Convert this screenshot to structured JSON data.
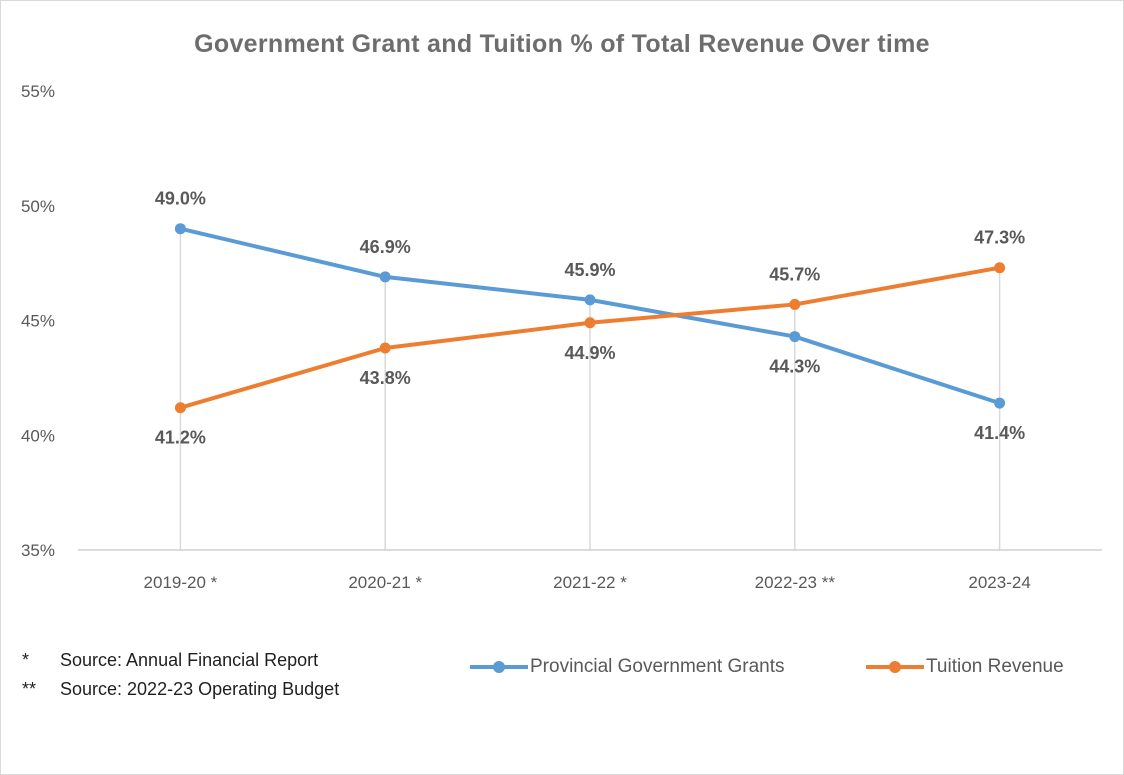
{
  "chart_data": {
    "type": "line",
    "title": "Government  Grant  and  Tuition  %  of  Total  Revenue  Over  time",
    "categories": [
      "2019-20 *",
      "2020-21 *",
      "2021-22 *",
      "2022-23 **",
      "2023-24"
    ],
    "y_ticks": [
      "35%",
      "40%",
      "45%",
      "50%",
      "55%"
    ],
    "ylim": [
      35,
      55
    ],
    "gridlines": "vertical drop lines per category",
    "legend_position": "bottom-right",
    "series": [
      {
        "name": "Provincial Government Grants",
        "color": "#5b9bd5",
        "values": [
          49.0,
          46.9,
          45.9,
          44.3,
          41.4
        ],
        "labels": [
          "49.0%",
          "46.9%",
          "45.9%",
          "44.3%",
          "41.4%"
        ],
        "label_positions": [
          "above",
          "above",
          "above",
          "below",
          "below"
        ]
      },
      {
        "name": "Tuition Revenue",
        "color": "#ed7d31",
        "values": [
          41.2,
          43.8,
          44.9,
          45.7,
          47.3
        ],
        "labels": [
          "41.2%",
          "43.8%",
          "44.9%",
          "45.7%",
          "47.3%"
        ],
        "label_positions": [
          "below",
          "below",
          "below",
          "above",
          "above"
        ]
      }
    ]
  },
  "notes": [
    {
      "mark": "*",
      "text": "Source: Annual Financial Report"
    },
    {
      "mark": "**",
      "text": "Source: 2022-23 Operating Budget"
    }
  ]
}
